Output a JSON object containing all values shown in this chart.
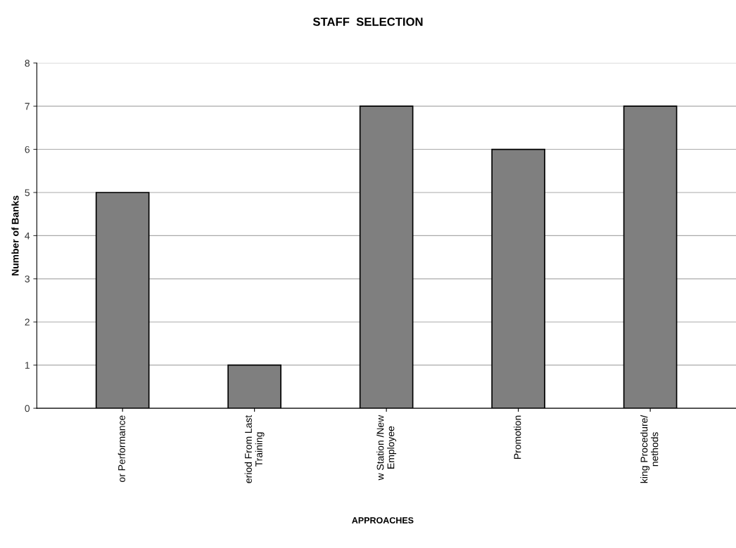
{
  "chart_data": {
    "type": "bar",
    "title": "STAFF  SELECTION",
    "xlabel": "APPROACHES",
    "ylabel": "Number of Banks",
    "categories": [
      "or Performance",
      "eriod From Last\nTraining",
      "w Station /New\nEmployee",
      "Promotion",
      "king Procedure/\nnethods"
    ],
    "values": [
      5,
      1,
      7,
      6,
      7
    ],
    "color": "#7f7f7f",
    "ylim": [
      0,
      8
    ],
    "yticks": [
      0,
      1,
      2,
      3,
      4,
      5,
      6,
      7,
      8
    ],
    "grid": "y"
  }
}
